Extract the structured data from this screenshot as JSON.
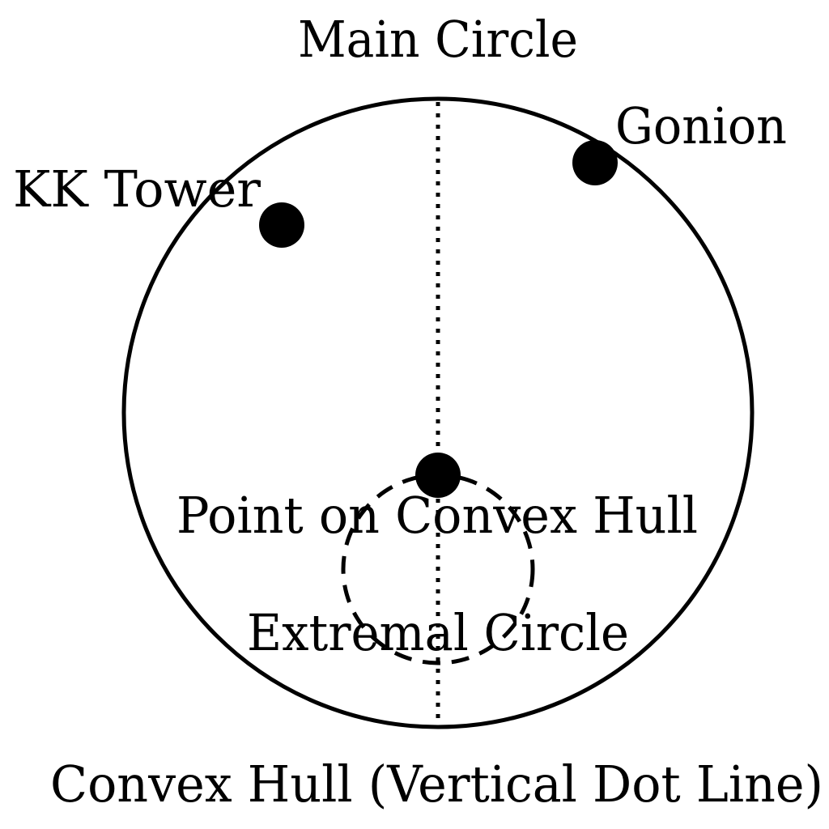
{
  "diagram": {
    "labels": {
      "main_circle": "Main Circle",
      "gonion": "Gonion",
      "kk_tower": "KK Tower",
      "point_on_hull": "Point on Convex Hull",
      "extremal_circle": "Extremal Circle",
      "convex_hull": "Convex Hull (Vertical Dot Line)"
    },
    "colors": {
      "stroke": "#000000",
      "background": "#ffffff"
    }
  }
}
